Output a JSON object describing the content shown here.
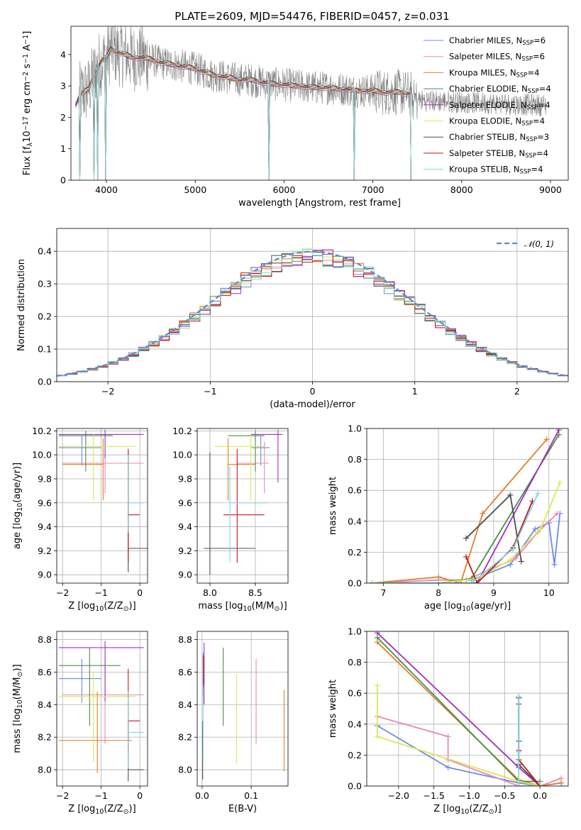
{
  "figure_title": "PLATE=2609, MJD=54476, FIBERID=0457, z=0.031",
  "series_colors": [
    "#6b8de3",
    "#e888b8",
    "#e07f2c",
    "#4a8f4a",
    "#a32fc4",
    "#dce84f",
    "#4e4e4e",
    "#c41818",
    "#7dd9e0"
  ],
  "spectrum_color": "#808080",
  "chart_data": [
    {
      "id": "spectrum",
      "type": "line",
      "xlabel": "wavelength [Angstrom, rest frame]",
      "ylabel": "Flux [f$_\\lambda$10$^{-17}$ erg cm$^{-2}$ s$^{-1}$ A$^{-1}$]",
      "ylabel_parts": [
        "Flux [f",
        "λ",
        "10",
        "−17",
        " erg cm",
        "−2",
        " s",
        "−1",
        " A",
        "−1",
        "]"
      ],
      "xlim": [
        3600,
        9200
      ],
      "ylim": [
        0,
        4.9
      ],
      "xticks": [
        4000,
        5000,
        6000,
        7000,
        8000,
        9000
      ],
      "yticks": [
        0,
        1,
        2,
        3,
        4
      ],
      "legend_position": "upper right",
      "legend": [
        {
          "model": "Chabrier MILES, N",
          "sub": "SSP",
          "tail": "=6"
        },
        {
          "model": "Salpeter MILES, N",
          "sub": "SSP",
          "tail": "=6"
        },
        {
          "model": "Kroupa MILES, N",
          "sub": "SSP",
          "tail": "=4"
        },
        {
          "model": "Chabrier ELODIE, N",
          "sub": "SSP",
          "tail": "=4"
        },
        {
          "model": "Salpeter ELODIE, N",
          "sub": "SSP",
          "tail": "=4"
        },
        {
          "model": "Kroupa ELODIE, N",
          "sub": "SSP",
          "tail": "=4"
        },
        {
          "model": "Chabrier STELIB, N",
          "sub": "SSP",
          "tail": "=3"
        },
        {
          "model": "Salpeter STELIB, N",
          "sub": "SSP",
          "tail": "=4"
        },
        {
          "model": "Kroupa STELIB, N",
          "sub": "SSP",
          "tail": "=4"
        }
      ],
      "model_curve": {
        "x": [
          3650,
          3700,
          3750,
          3800,
          3850,
          3900,
          3950,
          4000,
          4050,
          4100,
          4200,
          4300,
          4400,
          4500,
          4600,
          4700,
          4800,
          4900,
          5000,
          5100,
          5200,
          5300,
          5400,
          5500,
          5600,
          5700,
          5800,
          5900,
          6000,
          6100,
          6200,
          6300,
          6400,
          6500,
          6600,
          6700,
          6800,
          6900,
          7000,
          7100,
          7200,
          7300,
          7400,
          7430
        ],
        "y": [
          2.4,
          2.7,
          2.8,
          2.9,
          3.3,
          3.6,
          3.8,
          3.9,
          4.2,
          4.1,
          4.0,
          3.9,
          3.9,
          3.85,
          3.75,
          3.7,
          3.65,
          3.6,
          3.55,
          3.45,
          3.35,
          3.3,
          3.25,
          3.2,
          3.2,
          3.15,
          3.1,
          3.05,
          3.05,
          3.0,
          3.0,
          2.95,
          2.95,
          2.95,
          2.9,
          2.9,
          2.85,
          2.85,
          2.85,
          2.8,
          2.8,
          2.8,
          2.75,
          2.75
        ]
      },
      "data_dropouts_x": [
        3700,
        3860,
        3900,
        3990,
        5830,
        6790,
        7430
      ]
    },
    {
      "id": "residuals",
      "type": "histogram",
      "xlabel": "(data-model)/error",
      "ylabel": "Normed distribution",
      "xlim": [
        -2.5,
        2.5
      ],
      "ylim": [
        0,
        0.47
      ],
      "xticks": [
        -2,
        -1,
        0,
        1,
        2
      ],
      "yticks": [
        0.0,
        0.1,
        0.2,
        0.3,
        0.4
      ],
      "reference_curve_label": "𝒩(0, 1)",
      "bin_width": 0.1,
      "legend_position": "upper right"
    },
    {
      "id": "age_vs_Z",
      "type": "errorbar",
      "xlabel": "Z [log$_{10}$(Z/Z$_\\odot$)]",
      "ylabel": "age  [log$_{10}$(age/yr)]",
      "xlim": [
        -2.15,
        0.2
      ],
      "ylim": [
        8.93,
        10.22
      ],
      "xticks": [
        -2,
        -1,
        0
      ],
      "yticks": [
        9.0,
        9.2,
        9.4,
        9.6,
        9.8,
        10.0,
        10.2
      ],
      "points": [
        {
          "series": 0,
          "x": -1.5,
          "xerr": [
            0.6,
            0.5
          ],
          "y": 10.06,
          "yerr": [
            0.15,
            0.1
          ]
        },
        {
          "series": 1,
          "x": -0.9,
          "xerr": [
            1.1,
            1.0
          ],
          "y": 9.93,
          "yerr": [
            0.25,
            0.18
          ]
        },
        {
          "series": 2,
          "x": -0.95,
          "xerr": [
            1.05,
            0.0
          ],
          "y": 9.92,
          "yerr": [
            0.3,
            0.22
          ]
        },
        {
          "series": 3,
          "x": -1.4,
          "xerr": [
            0.7,
            0.7
          ],
          "y": 10.16,
          "yerr": [
            0.3,
            0.04
          ]
        },
        {
          "series": 4,
          "x": -0.9,
          "xerr": [
            1.2,
            1.0
          ],
          "y": 10.17,
          "yerr": [
            0.2,
            0.04
          ]
        },
        {
          "series": 5,
          "x": -1.2,
          "xerr": [
            0.9,
            1.1
          ],
          "y": 10.07,
          "yerr": [
            0.45,
            0.1
          ]
        },
        {
          "series": 6,
          "x": -0.3,
          "xerr": [
            0.0,
            0.6
          ],
          "y": 9.22,
          "yerr": [
            0.2,
            0.8
          ]
        },
        {
          "series": 7,
          "x": -0.3,
          "xerr": [
            0.0,
            0.3
          ],
          "y": 9.5,
          "yerr": [
            0.4,
            0.55
          ]
        },
        {
          "series": 8,
          "x": -0.3,
          "xerr": [
            0.0,
            0.4
          ],
          "y": 9.6,
          "yerr": [
            0.25,
            0.4
          ]
        }
      ]
    },
    {
      "id": "age_vs_mass",
      "type": "errorbar",
      "xlabel": "mass [log$_{10}$(M/M$_\\odot$)]",
      "ylabel": "",
      "xlim": [
        7.86,
        8.86
      ],
      "ylim": [
        8.93,
        10.22
      ],
      "xticks": [
        8.0,
        8.5
      ],
      "yticks": [
        9.0,
        9.2,
        9.4,
        9.6,
        9.8,
        10.0,
        10.2
      ],
      "points": [
        {
          "series": 0,
          "x": 8.56,
          "xerr": [
            0.1,
            0.1
          ],
          "y": 10.06,
          "yerr": [
            0.15,
            0.1
          ]
        },
        {
          "series": 1,
          "x": 8.6,
          "xerr": [
            0.3,
            0.05
          ],
          "y": 9.93,
          "yerr": [
            0.25,
            0.18
          ]
        },
        {
          "series": 2,
          "x": 8.2,
          "xerr": [
            0.0,
            0.3
          ],
          "y": 9.92,
          "yerr": [
            0.3,
            0.22
          ]
        },
        {
          "series": 3,
          "x": 8.5,
          "xerr": [
            0.3,
            0.1
          ],
          "y": 10.16,
          "yerr": [
            0.3,
            0.04
          ]
        },
        {
          "series": 4,
          "x": 8.75,
          "xerr": [
            0.3,
            0.05
          ],
          "y": 10.17,
          "yerr": [
            0.4,
            0.04
          ]
        },
        {
          "series": 5,
          "x": 8.45,
          "xerr": [
            0.4,
            0.15
          ],
          "y": 10.07,
          "yerr": [
            0.45,
            0.1
          ]
        },
        {
          "series": 6,
          "x": 8.0,
          "xerr": [
            0.07,
            0.5
          ],
          "y": 9.22,
          "yerr": [
            0.22,
            0.8
          ]
        },
        {
          "series": 7,
          "x": 8.3,
          "xerr": [
            0.15,
            0.3
          ],
          "y": 9.5,
          "yerr": [
            0.4,
            0.55
          ]
        },
        {
          "series": 8,
          "x": 8.22,
          "xerr": [
            0.0,
            0.4
          ],
          "y": 9.6,
          "yerr": [
            0.5,
            0.3
          ]
        }
      ]
    },
    {
      "id": "weight_vs_age",
      "type": "line",
      "xlabel": "age  [log$_{10}$(age/yr)]",
      "ylabel": "mass weight",
      "xlim": [
        6.7,
        10.35
      ],
      "ylim": [
        0,
        1
      ],
      "xticks": [
        7,
        8,
        9,
        10
      ],
      "yticks": [
        0.0,
        0.2,
        0.4,
        0.6,
        0.8,
        1.0
      ],
      "series": [
        {
          "series": 0,
          "x": [
            6.8,
            8.0,
            8.6,
            9.3,
            9.75,
            10.0,
            10.1,
            10.2
          ],
          "y": [
            0.0,
            0.02,
            0.02,
            0.12,
            0.35,
            0.39,
            0.12,
            0.45
          ]
        },
        {
          "series": 1,
          "x": [
            6.8,
            8.0,
            8.5,
            9.4,
            9.8,
            10.15
          ],
          "y": [
            0.0,
            0.02,
            0.02,
            0.16,
            0.33,
            0.45
          ]
        },
        {
          "series": 2,
          "x": [
            6.8,
            8.0,
            8.4,
            8.8,
            9.96
          ],
          "y": [
            0.0,
            0.04,
            0.0,
            0.45,
            0.93
          ]
        },
        {
          "series": 3,
          "x": [
            6.8,
            8.0,
            8.6,
            10.18
          ],
          "y": [
            0.0,
            0.0,
            0.03,
            0.96
          ]
        },
        {
          "series": 4,
          "x": [
            6.8,
            8.0,
            8.7,
            10.18
          ],
          "y": [
            0.0,
            0.0,
            0.0,
            0.99
          ]
        },
        {
          "series": 5,
          "x": [
            6.8,
            8.0,
            8.7,
            9.3,
            9.85,
            10.2
          ],
          "y": [
            0.0,
            0.0,
            0.03,
            0.15,
            0.35,
            0.65
          ]
        },
        {
          "series": 6,
          "x": [
            8.5,
            9.3,
            9.5
          ],
          "y": [
            0.29,
            0.57,
            0.14
          ]
        },
        {
          "series": 7,
          "x": [
            8.5,
            8.7,
            9.35,
            9.7
          ],
          "y": [
            0.17,
            0.0,
            0.23,
            0.53
          ]
        },
        {
          "series": 8,
          "x": [
            6.8,
            8.0,
            8.6,
            9.35,
            9.8
          ],
          "y": [
            0.0,
            0.0,
            0.0,
            0.22,
            0.58
          ]
        }
      ]
    },
    {
      "id": "mass_vs_Z",
      "type": "errorbar",
      "xlabel": "Z [log$_{10}$(Z/Z$_\\odot$)]",
      "ylabel": "mass [log$_{10}$(M/M$_\\odot$)]",
      "xlim": [
        -2.15,
        0.2
      ],
      "ylim": [
        7.9,
        8.85
      ],
      "xticks": [
        -2,
        -1,
        0
      ],
      "yticks": [
        8.0,
        8.2,
        8.4,
        8.6,
        8.8
      ],
      "points": [
        {
          "series": 0,
          "x": -1.5,
          "xerr": [
            0.6,
            0.5
          ],
          "y": 8.56,
          "yerr": [
            0.15,
            0.12
          ]
        },
        {
          "series": 1,
          "x": -0.9,
          "xerr": [
            1.1,
            1.0
          ],
          "y": 8.46,
          "yerr": [
            0.3,
            0.22
          ]
        },
        {
          "series": 2,
          "x": -1.1,
          "xerr": [
            1.0,
            0.9
          ],
          "y": 8.18,
          "yerr": [
            0.2,
            0.3
          ]
        },
        {
          "series": 3,
          "x": -1.3,
          "xerr": [
            0.8,
            0.8
          ],
          "y": 8.64,
          "yerr": [
            0.37,
            0.11
          ]
        },
        {
          "series": 4,
          "x": -0.9,
          "xerr": [
            1.2,
            1.0
          ],
          "y": 8.75,
          "yerr": [
            0.33,
            0.04
          ]
        },
        {
          "series": 5,
          "x": -1.2,
          "xerr": [
            0.9,
            1.1
          ],
          "y": 8.45,
          "yerr": [
            0.4,
            0.15
          ]
        },
        {
          "series": 6,
          "x": -0.3,
          "xerr": [
            0.0,
            0.4
          ],
          "y": 8.0,
          "yerr": [
            0.07,
            0.3
          ]
        },
        {
          "series": 7,
          "x": -0.3,
          "xerr": [
            0.0,
            0.3
          ],
          "y": 8.3,
          "yerr": [
            0.2,
            0.32
          ]
        },
        {
          "series": 8,
          "x": -0.3,
          "xerr": [
            0.0,
            0.4
          ],
          "y": 8.23,
          "yerr": [
            0.22,
            0.25
          ]
        }
      ]
    },
    {
      "id": "mass_vs_ebv",
      "type": "errorbar",
      "xlabel": "E(B-V)",
      "ylabel": "",
      "xlim": [
        -0.01,
        0.175
      ],
      "ylim": [
        7.9,
        8.85
      ],
      "xticks": [
        0.0,
        0.1
      ],
      "yticks": [
        8.0,
        8.2,
        8.4,
        8.6,
        8.8
      ],
      "points": [
        {
          "series": 0,
          "x": 0.002,
          "yl": 8.45,
          "yh": 8.72
        },
        {
          "series": 1,
          "x": 0.11,
          "yl": 8.16,
          "yh": 8.68
        },
        {
          "series": 2,
          "x": 0.167,
          "yl": 7.99,
          "yh": 8.49
        },
        {
          "series": 3,
          "x": 0.043,
          "yl": 8.27,
          "yh": 8.75
        },
        {
          "series": 4,
          "x": 0.004,
          "yl": 8.4,
          "yh": 8.78
        },
        {
          "series": 5,
          "x": 0.07,
          "yl": 8.04,
          "yh": 8.59
        },
        {
          "series": 6,
          "x": 0.001,
          "yl": 7.94,
          "yh": 8.3
        },
        {
          "series": 7,
          "x": 0.003,
          "yl": 8.52,
          "yh": 8.7
        },
        {
          "series": 8,
          "x": 0.002,
          "yl": 8.05,
          "yh": 8.5
        }
      ]
    },
    {
      "id": "weight_vs_Z",
      "type": "line",
      "xlabel": "Z [log$_{10}$(Z/Z$_\\odot$)]",
      "ylabel": "mass weight",
      "xlim": [
        -2.45,
        0.4
      ],
      "ylim": [
        0,
        1
      ],
      "xticks": [
        -2.0,
        -1.5,
        -1.0,
        -0.5,
        0.0
      ],
      "yticks": [
        0.0,
        0.2,
        0.4,
        0.6,
        0.8,
        1.0
      ],
      "series": [
        {
          "series": 0,
          "x": [
            -2.3,
            -1.3,
            -0.3,
            0.0,
            0.3
          ],
          "y": [
            0.39,
            0.12,
            0.02,
            0.0,
            0.02
          ]
        },
        {
          "series": 1,
          "x": [
            -2.3,
            -1.3,
            -1.3,
            -0.3,
            0.0,
            0.3
          ],
          "y": [
            0.45,
            0.32,
            0.17,
            0.0,
            0.0,
            0.05
          ]
        },
        {
          "series": 2,
          "x": [
            -2.3,
            -0.3,
            0.0,
            0.3
          ],
          "y": [
            0.93,
            0.04,
            0.0,
            0.02
          ]
        },
        {
          "series": 3,
          "x": [
            -2.3,
            -0.3,
            0.0
          ],
          "y": [
            0.96,
            0.03,
            0.03
          ]
        },
        {
          "series": 4,
          "x": [
            -2.3,
            -0.3,
            0.0
          ],
          "y": [
            0.99,
            0.12,
            0.0
          ]
        },
        {
          "series": 5,
          "x": [
            -2.3,
            -2.3,
            -0.3,
            0.0
          ],
          "y": [
            0.65,
            0.32,
            0.03,
            0.0
          ]
        },
        {
          "series": 6,
          "x": [
            -0.3,
            -0.3,
            -0.3,
            0.0
          ],
          "y": [
            0.57,
            0.29,
            0.14,
            0.0
          ]
        },
        {
          "series": 7,
          "x": [
            -0.3,
            -0.3,
            -0.3,
            0.0
          ],
          "y": [
            0.53,
            0.23,
            0.17,
            0.0
          ]
        },
        {
          "series": 8,
          "x": [
            -0.3,
            -0.3,
            -0.3,
            0.0
          ],
          "y": [
            0.58,
            0.22,
            0.0,
            0.0
          ]
        }
      ]
    }
  ]
}
